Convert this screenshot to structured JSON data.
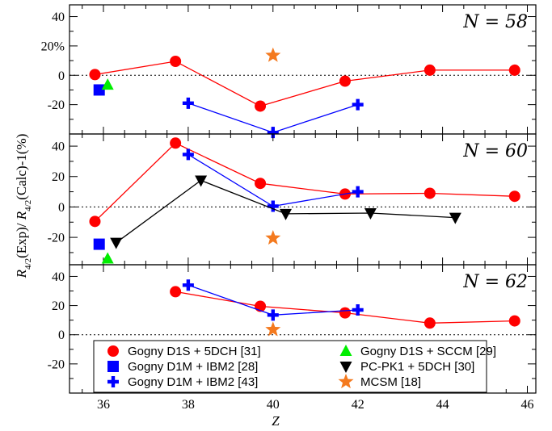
{
  "chart_data": {
    "type": "scatter",
    "xlabel": "Z",
    "ylabel": "R4/2(Exp)/ R4/2(Calc)-1(%)",
    "xlim": [
      35.2,
      46.2
    ],
    "x_ticks": [
      36,
      38,
      40,
      42,
      44,
      46
    ],
    "colors": {
      "red": "#ff0000",
      "blue": "#0000ff",
      "green": "#00ee00",
      "black": "#000000",
      "orange": "#f47a1f"
    },
    "legend": [
      {
        "label": "Gogny D1S + 5DCH [31]",
        "marker": "circle",
        "color": "#ff0000"
      },
      {
        "label": "Gogny D1M + IBM2 [28]",
        "marker": "square",
        "color": "#0000ff"
      },
      {
        "label": "Gogny D1M + IBM2 [43]",
        "marker": "plus",
        "color": "#0000ff"
      },
      {
        "label": "Gogny D1S + SCCM [29]",
        "marker": "triangle-up",
        "color": "#00ee00"
      },
      {
        "label": "PC-PK1 + 5DCH [30]",
        "marker": "triangle-down",
        "color": "#000000"
      },
      {
        "label": "MCSM [18]",
        "marker": "star",
        "color": "#f47a1f"
      }
    ],
    "panels": [
      {
        "label": "N = 58",
        "ylim": [
          -40,
          48
        ],
        "y_ticks": [
          40,
          20,
          0,
          -20
        ],
        "y_ticklabels": [
          "40",
          "20%",
          "0",
          "-20"
        ],
        "series": [
          {
            "legend_index": 0,
            "marker": "circle",
            "color": "#ff0000",
            "line": true,
            "x": [
              35.8,
              37.7,
              39.7,
              41.7,
              43.7,
              45.7
            ],
            "y": [
              0.5,
              9.5,
              -21,
              -4,
              3.5,
              3.5
            ]
          },
          {
            "legend_index": 2,
            "marker": "plus",
            "color": "#0000ff",
            "line": true,
            "x": [
              38.0,
              40.0,
              42.0
            ],
            "y": [
              -19,
              -39,
              -20
            ]
          },
          {
            "legend_index": 1,
            "marker": "square",
            "color": "#0000ff",
            "line": false,
            "x": [
              35.9
            ],
            "y": [
              -10
            ]
          },
          {
            "legend_index": 3,
            "marker": "triangle-up",
            "color": "#00ee00",
            "line": false,
            "x": [
              36.1
            ],
            "y": [
              -6.5
            ]
          },
          {
            "legend_index": 5,
            "marker": "star",
            "color": "#f47a1f",
            "line": false,
            "x": [
              40.0
            ],
            "y": [
              13.5
            ]
          }
        ]
      },
      {
        "label": "N = 60",
        "ylim": [
          -38,
          48
        ],
        "y_ticks": [
          40,
          20,
          0,
          -20
        ],
        "y_ticklabels": [
          "40",
          "20",
          "0",
          "-20"
        ],
        "series": [
          {
            "legend_index": 0,
            "marker": "circle",
            "color": "#ff0000",
            "line": true,
            "x": [
              35.8,
              37.7,
              39.7,
              41.7,
              43.7,
              45.7
            ],
            "y": [
              -9.5,
              42,
              15.5,
              8.5,
              9,
              7
            ]
          },
          {
            "legend_index": 2,
            "marker": "plus",
            "color": "#0000ff",
            "line": true,
            "x": [
              38.0,
              40.0,
              42.0
            ],
            "y": [
              34.5,
              0.5,
              10
            ]
          },
          {
            "legend_index": 4,
            "marker": "triangle-down",
            "color": "#000000",
            "line": true,
            "x": [
              36.3,
              38.3,
              40.3,
              42.3,
              44.3
            ],
            "y": [
              -23.5,
              17.5,
              -4.5,
              -4,
              -7
            ]
          },
          {
            "legend_index": 1,
            "marker": "square",
            "color": "#0000ff",
            "line": false,
            "x": [
              35.9
            ],
            "y": [
              -24.5
            ]
          },
          {
            "legend_index": 3,
            "marker": "triangle-up",
            "color": "#00ee00",
            "line": false,
            "x": [
              36.1
            ],
            "y": [
              -34
            ]
          },
          {
            "legend_index": 5,
            "marker": "star",
            "color": "#f47a1f",
            "line": false,
            "x": [
              40.0
            ],
            "y": [
              -20.5
            ]
          }
        ]
      },
      {
        "label": "N = 62",
        "ylim": [
          -40,
          48
        ],
        "y_ticks": [
          40,
          20,
          0,
          -20
        ],
        "y_ticklabels": [
          "40",
          "20",
          "0",
          "-20"
        ],
        "series": [
          {
            "legend_index": 0,
            "marker": "circle",
            "color": "#ff0000",
            "line": true,
            "x": [
              37.7,
              39.7,
              41.7,
              43.7,
              45.7
            ],
            "y": [
              29.5,
              19.5,
              15,
              8,
              9.5
            ]
          },
          {
            "legend_index": 2,
            "marker": "plus",
            "color": "#0000ff",
            "line": true,
            "x": [
              38.0,
              40.0,
              42.0
            ],
            "y": [
              34,
              13.5,
              17
            ]
          },
          {
            "legend_index": 5,
            "marker": "star",
            "color": "#f47a1f",
            "line": false,
            "x": [
              40.0
            ],
            "y": [
              3.5
            ]
          }
        ]
      }
    ]
  }
}
